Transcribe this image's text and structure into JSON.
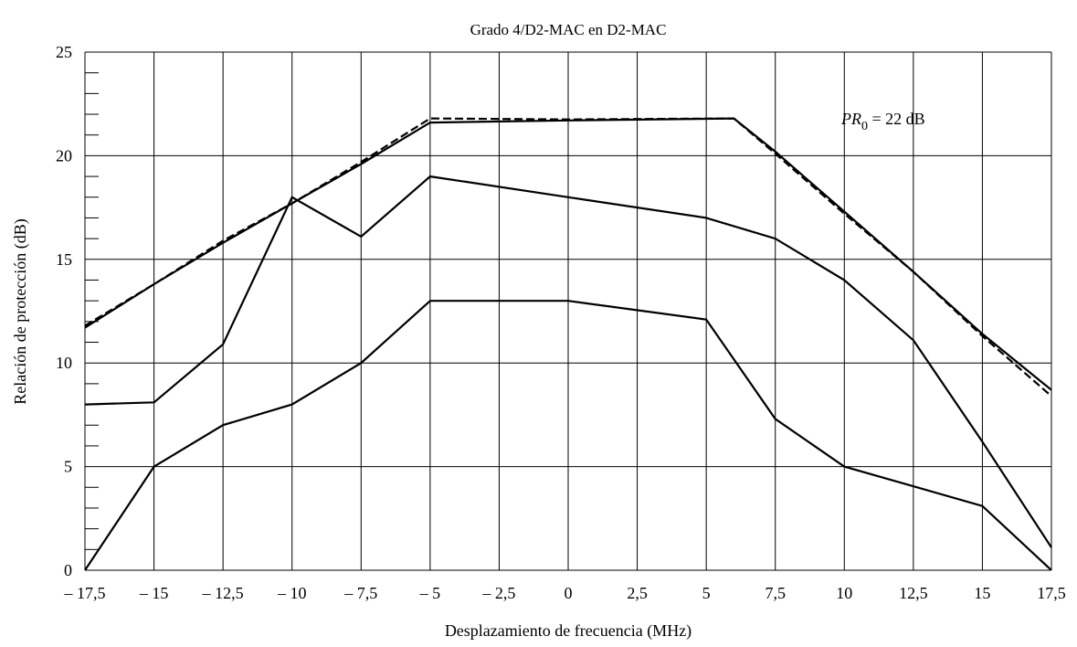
{
  "chart_data": {
    "type": "line",
    "title": "Grado 4/D2-MAC en D2-MAC",
    "xlabel": "Desplazamiento de frecuencia (MHz)",
    "ylabel": "Relación de protección (dB)",
    "xlim": [
      -17.5,
      17.5
    ],
    "ylim": [
      0,
      25
    ],
    "grid": true,
    "x_ticks": [
      -17.5,
      -15,
      -12.5,
      -10,
      -7.5,
      -5,
      -2.5,
      0,
      2.5,
      5,
      7.5,
      10,
      12.5,
      15,
      17.5
    ],
    "x_tick_labels": [
      "– 17,5",
      "– 15",
      "– 12,5",
      "– 10",
      "– 7,5",
      "– 5",
      "– 2,5",
      "0",
      "2,5",
      "5",
      "7,5",
      "10",
      "12,5",
      "15",
      "17,5"
    ],
    "y_ticks": [
      0,
      5,
      10,
      15,
      20,
      25
    ],
    "y_tick_labels": [
      "0",
      "5",
      "10",
      "15",
      "20",
      "25"
    ],
    "annotation": {
      "prefix": "PR",
      "subscript": "0",
      "suffix": " = 22 dB"
    },
    "series": [
      {
        "style": "dashed",
        "points": [
          [
            -17.5,
            11.8
          ],
          [
            -15,
            13.8
          ],
          [
            -12.5,
            15.9
          ],
          [
            -10,
            17.7
          ],
          [
            -7.5,
            19.7
          ],
          [
            -5,
            21.8
          ],
          [
            0,
            21.75
          ],
          [
            6,
            21.8
          ],
          [
            7.5,
            20.1
          ],
          [
            10,
            17.2
          ],
          [
            12.5,
            14.4
          ],
          [
            15,
            11.3
          ],
          [
            17.5,
            8.4
          ]
        ]
      },
      {
        "style": "solid",
        "points": [
          [
            -17.5,
            11.7
          ],
          [
            -15,
            13.8
          ],
          [
            -12.5,
            15.8
          ],
          [
            -10,
            17.7
          ],
          [
            -7.5,
            19.6
          ],
          [
            -5,
            21.6
          ],
          [
            0,
            21.7
          ],
          [
            6,
            21.8
          ],
          [
            7.5,
            20.2
          ],
          [
            10,
            17.3
          ],
          [
            12.5,
            14.4
          ],
          [
            15,
            11.4
          ],
          [
            17.5,
            8.7
          ]
        ]
      },
      {
        "style": "solid",
        "points": [
          [
            -17.5,
            8.0
          ],
          [
            -15,
            8.1
          ],
          [
            -12.5,
            10.9
          ],
          [
            -10,
            18.0
          ],
          [
            -7.5,
            16.1
          ],
          [
            -5,
            19.0
          ],
          [
            0,
            18.0
          ],
          [
            5,
            17.0
          ],
          [
            7.5,
            16.0
          ],
          [
            10,
            14.0
          ],
          [
            12.5,
            11.1
          ],
          [
            15,
            6.2
          ],
          [
            17.5,
            1.1
          ]
        ]
      },
      {
        "style": "solid",
        "points": [
          [
            -17.5,
            0
          ],
          [
            -15,
            5.0
          ],
          [
            -12.5,
            7.0
          ],
          [
            -10,
            8.0
          ],
          [
            -7.5,
            10.0
          ],
          [
            -5,
            13.0
          ],
          [
            0,
            13.0
          ],
          [
            5,
            12.1
          ],
          [
            7.5,
            7.3
          ],
          [
            10,
            5.0
          ],
          [
            15,
            3.1
          ],
          [
            17.5,
            0
          ]
        ]
      }
    ]
  }
}
